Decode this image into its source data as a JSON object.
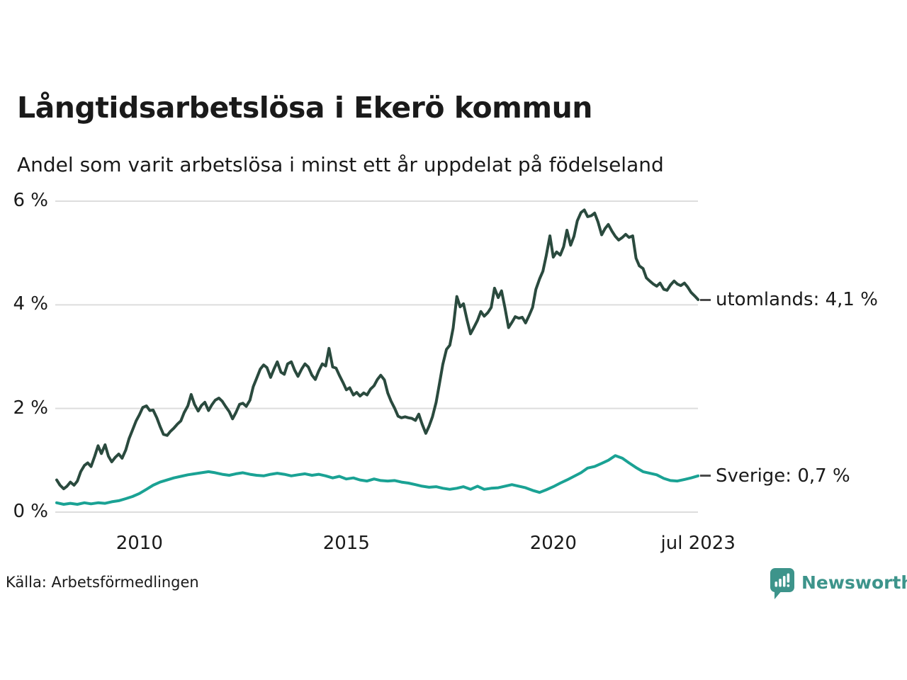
{
  "header": {
    "title": "Långtidsarbetslösa i Ekerö kommun",
    "subtitle": "Andel som varit arbetslösa i minst ett år uppdelat på födelseland"
  },
  "footer": {
    "source": "Källa: Arbetsförmedlingen",
    "brand": {
      "name": "Newsworthy",
      "color": "#3d948b",
      "icon": "newsworthy-chart-bubble-icon"
    }
  },
  "chart_data": {
    "type": "line",
    "title": "Långtidsarbetslösa i Ekerö kommun",
    "subtitle": "Andel som varit arbetslösa i minst ett år uppdelat på födelseland",
    "source": "Källa: Arbetsförmedlingen",
    "grid": true,
    "legend_position": "end-of-line labels, right side",
    "background": "#ffffff",
    "gridline_color": "#dddddd",
    "x_axis": {
      "range": [
        2008,
        2023.58
      ],
      "ticks": [
        {
          "label": "2010",
          "year": 2010
        },
        {
          "label": "2015",
          "year": 2015
        },
        {
          "label": "2020",
          "year": 2020
        },
        {
          "label": "jul 2023",
          "year": 2023.5
        }
      ]
    },
    "y_axis": {
      "unit": "%",
      "range": [
        0,
        6.2
      ],
      "ticks": [
        {
          "label": "0 %",
          "value": 0
        },
        {
          "label": "2 %",
          "value": 2
        },
        {
          "label": "4 %",
          "value": 4
        },
        {
          "label": "6 %",
          "value": 6
        }
      ]
    },
    "series": [
      {
        "name": "utomlands",
        "color": "#2a4a3e",
        "end_label": "utomlands: 4,1 %",
        "last_value": 4.1,
        "points": [
          [
            2008.0,
            0.62
          ],
          [
            2008.08,
            0.52
          ],
          [
            2008.17,
            0.45
          ],
          [
            2008.25,
            0.5
          ],
          [
            2008.33,
            0.58
          ],
          [
            2008.42,
            0.52
          ],
          [
            2008.5,
            0.6
          ],
          [
            2008.58,
            0.78
          ],
          [
            2008.67,
            0.9
          ],
          [
            2008.75,
            0.95
          ],
          [
            2008.83,
            0.88
          ],
          [
            2008.92,
            1.08
          ],
          [
            2009.0,
            1.28
          ],
          [
            2009.08,
            1.13
          ],
          [
            2009.17,
            1.3
          ],
          [
            2009.25,
            1.08
          ],
          [
            2009.33,
            0.97
          ],
          [
            2009.42,
            1.06
          ],
          [
            2009.5,
            1.12
          ],
          [
            2009.58,
            1.04
          ],
          [
            2009.67,
            1.2
          ],
          [
            2009.75,
            1.42
          ],
          [
            2009.83,
            1.58
          ],
          [
            2009.92,
            1.76
          ],
          [
            2010.0,
            1.88
          ],
          [
            2010.08,
            2.02
          ],
          [
            2010.17,
            2.05
          ],
          [
            2010.25,
            1.96
          ],
          [
            2010.33,
            1.97
          ],
          [
            2010.42,
            1.82
          ],
          [
            2010.5,
            1.65
          ],
          [
            2010.58,
            1.5
          ],
          [
            2010.67,
            1.48
          ],
          [
            2010.75,
            1.56
          ],
          [
            2010.83,
            1.62
          ],
          [
            2010.92,
            1.7
          ],
          [
            2011.0,
            1.76
          ],
          [
            2011.08,
            1.92
          ],
          [
            2011.17,
            2.05
          ],
          [
            2011.25,
            2.27
          ],
          [
            2011.33,
            2.08
          ],
          [
            2011.42,
            1.95
          ],
          [
            2011.5,
            2.06
          ],
          [
            2011.58,
            2.12
          ],
          [
            2011.67,
            1.96
          ],
          [
            2011.75,
            2.07
          ],
          [
            2011.83,
            2.16
          ],
          [
            2011.92,
            2.2
          ],
          [
            2012.0,
            2.14
          ],
          [
            2012.08,
            2.04
          ],
          [
            2012.17,
            1.94
          ],
          [
            2012.25,
            1.8
          ],
          [
            2012.33,
            1.92
          ],
          [
            2012.42,
            2.08
          ],
          [
            2012.5,
            2.1
          ],
          [
            2012.58,
            2.04
          ],
          [
            2012.67,
            2.16
          ],
          [
            2012.75,
            2.42
          ],
          [
            2012.83,
            2.58
          ],
          [
            2012.92,
            2.76
          ],
          [
            2013.0,
            2.84
          ],
          [
            2013.08,
            2.79
          ],
          [
            2013.17,
            2.6
          ],
          [
            2013.25,
            2.76
          ],
          [
            2013.33,
            2.9
          ],
          [
            2013.42,
            2.7
          ],
          [
            2013.5,
            2.66
          ],
          [
            2013.58,
            2.86
          ],
          [
            2013.67,
            2.9
          ],
          [
            2013.75,
            2.74
          ],
          [
            2013.83,
            2.62
          ],
          [
            2013.92,
            2.76
          ],
          [
            2014.0,
            2.86
          ],
          [
            2014.08,
            2.8
          ],
          [
            2014.17,
            2.64
          ],
          [
            2014.25,
            2.56
          ],
          [
            2014.33,
            2.72
          ],
          [
            2014.42,
            2.86
          ],
          [
            2014.5,
            2.82
          ],
          [
            2014.58,
            3.16
          ],
          [
            2014.67,
            2.8
          ],
          [
            2014.75,
            2.78
          ],
          [
            2014.83,
            2.64
          ],
          [
            2014.92,
            2.5
          ],
          [
            2015.0,
            2.36
          ],
          [
            2015.08,
            2.4
          ],
          [
            2015.17,
            2.26
          ],
          [
            2015.25,
            2.31
          ],
          [
            2015.33,
            2.24
          ],
          [
            2015.42,
            2.3
          ],
          [
            2015.5,
            2.26
          ],
          [
            2015.58,
            2.37
          ],
          [
            2015.67,
            2.44
          ],
          [
            2015.75,
            2.56
          ],
          [
            2015.83,
            2.64
          ],
          [
            2015.92,
            2.55
          ],
          [
            2016.0,
            2.3
          ],
          [
            2016.08,
            2.14
          ],
          [
            2016.17,
            2.0
          ],
          [
            2016.25,
            1.85
          ],
          [
            2016.33,
            1.82
          ],
          [
            2016.42,
            1.84
          ],
          [
            2016.5,
            1.82
          ],
          [
            2016.58,
            1.81
          ],
          [
            2016.67,
            1.77
          ],
          [
            2016.75,
            1.89
          ],
          [
            2016.83,
            1.7
          ],
          [
            2016.92,
            1.52
          ],
          [
            2017.0,
            1.66
          ],
          [
            2017.08,
            1.84
          ],
          [
            2017.17,
            2.12
          ],
          [
            2017.25,
            2.48
          ],
          [
            2017.33,
            2.85
          ],
          [
            2017.42,
            3.14
          ],
          [
            2017.5,
            3.22
          ],
          [
            2017.58,
            3.55
          ],
          [
            2017.67,
            4.16
          ],
          [
            2017.75,
            3.96
          ],
          [
            2017.83,
            4.02
          ],
          [
            2017.92,
            3.7
          ],
          [
            2018.0,
            3.44
          ],
          [
            2018.08,
            3.56
          ],
          [
            2018.17,
            3.7
          ],
          [
            2018.25,
            3.87
          ],
          [
            2018.33,
            3.78
          ],
          [
            2018.42,
            3.85
          ],
          [
            2018.5,
            3.95
          ],
          [
            2018.58,
            4.32
          ],
          [
            2018.67,
            4.14
          ],
          [
            2018.75,
            4.27
          ],
          [
            2018.83,
            3.95
          ],
          [
            2018.92,
            3.56
          ],
          [
            2019.0,
            3.66
          ],
          [
            2019.08,
            3.77
          ],
          [
            2019.17,
            3.74
          ],
          [
            2019.25,
            3.76
          ],
          [
            2019.33,
            3.65
          ],
          [
            2019.42,
            3.8
          ],
          [
            2019.5,
            3.95
          ],
          [
            2019.58,
            4.3
          ],
          [
            2019.67,
            4.5
          ],
          [
            2019.75,
            4.65
          ],
          [
            2019.83,
            4.95
          ],
          [
            2019.92,
            5.33
          ],
          [
            2020.0,
            4.92
          ],
          [
            2020.08,
            5.02
          ],
          [
            2020.17,
            4.96
          ],
          [
            2020.25,
            5.12
          ],
          [
            2020.33,
            5.44
          ],
          [
            2020.42,
            5.15
          ],
          [
            2020.5,
            5.32
          ],
          [
            2020.58,
            5.62
          ],
          [
            2020.67,
            5.78
          ],
          [
            2020.75,
            5.83
          ],
          [
            2020.83,
            5.7
          ],
          [
            2020.92,
            5.72
          ],
          [
            2021.0,
            5.77
          ],
          [
            2021.08,
            5.6
          ],
          [
            2021.17,
            5.35
          ],
          [
            2021.25,
            5.47
          ],
          [
            2021.33,
            5.55
          ],
          [
            2021.42,
            5.42
          ],
          [
            2021.5,
            5.32
          ],
          [
            2021.58,
            5.25
          ],
          [
            2021.67,
            5.3
          ],
          [
            2021.75,
            5.36
          ],
          [
            2021.83,
            5.3
          ],
          [
            2021.92,
            5.33
          ],
          [
            2022.0,
            4.9
          ],
          [
            2022.08,
            4.75
          ],
          [
            2022.17,
            4.7
          ],
          [
            2022.25,
            4.52
          ],
          [
            2022.33,
            4.46
          ],
          [
            2022.42,
            4.4
          ],
          [
            2022.5,
            4.36
          ],
          [
            2022.58,
            4.42
          ],
          [
            2022.67,
            4.3
          ],
          [
            2022.75,
            4.28
          ],
          [
            2022.83,
            4.38
          ],
          [
            2022.92,
            4.46
          ],
          [
            2023.0,
            4.4
          ],
          [
            2023.08,
            4.37
          ],
          [
            2023.17,
            4.42
          ],
          [
            2023.25,
            4.34
          ],
          [
            2023.33,
            4.24
          ],
          [
            2023.42,
            4.17
          ],
          [
            2023.5,
            4.1
          ]
        ]
      },
      {
        "name": "Sverige",
        "color": "#1aa294",
        "end_label": "Sverige: 0,7 %",
        "last_value": 0.7,
        "points": [
          [
            2008.0,
            0.18
          ],
          [
            2008.17,
            0.15
          ],
          [
            2008.33,
            0.17
          ],
          [
            2008.5,
            0.15
          ],
          [
            2008.67,
            0.18
          ],
          [
            2008.83,
            0.16
          ],
          [
            2009.0,
            0.18
          ],
          [
            2009.17,
            0.17
          ],
          [
            2009.33,
            0.2
          ],
          [
            2009.5,
            0.22
          ],
          [
            2009.67,
            0.26
          ],
          [
            2009.83,
            0.3
          ],
          [
            2010.0,
            0.36
          ],
          [
            2010.17,
            0.44
          ],
          [
            2010.33,
            0.52
          ],
          [
            2010.5,
            0.58
          ],
          [
            2010.67,
            0.62
          ],
          [
            2010.83,
            0.66
          ],
          [
            2011.0,
            0.69
          ],
          [
            2011.17,
            0.72
          ],
          [
            2011.33,
            0.74
          ],
          [
            2011.5,
            0.76
          ],
          [
            2011.67,
            0.78
          ],
          [
            2011.83,
            0.76
          ],
          [
            2012.0,
            0.73
          ],
          [
            2012.17,
            0.71
          ],
          [
            2012.33,
            0.74
          ],
          [
            2012.5,
            0.76
          ],
          [
            2012.67,
            0.73
          ],
          [
            2012.83,
            0.71
          ],
          [
            2013.0,
            0.7
          ],
          [
            2013.17,
            0.73
          ],
          [
            2013.33,
            0.75
          ],
          [
            2013.5,
            0.73
          ],
          [
            2013.67,
            0.7
          ],
          [
            2013.83,
            0.72
          ],
          [
            2014.0,
            0.74
          ],
          [
            2014.17,
            0.71
          ],
          [
            2014.33,
            0.73
          ],
          [
            2014.5,
            0.7
          ],
          [
            2014.67,
            0.66
          ],
          [
            2014.83,
            0.69
          ],
          [
            2015.0,
            0.64
          ],
          [
            2015.17,
            0.66
          ],
          [
            2015.33,
            0.62
          ],
          [
            2015.5,
            0.6
          ],
          [
            2015.67,
            0.64
          ],
          [
            2015.83,
            0.61
          ],
          [
            2016.0,
            0.6
          ],
          [
            2016.17,
            0.61
          ],
          [
            2016.33,
            0.58
          ],
          [
            2016.5,
            0.56
          ],
          [
            2016.67,
            0.53
          ],
          [
            2016.83,
            0.5
          ],
          [
            2017.0,
            0.48
          ],
          [
            2017.17,
            0.49
          ],
          [
            2017.33,
            0.46
          ],
          [
            2017.5,
            0.44
          ],
          [
            2017.67,
            0.46
          ],
          [
            2017.83,
            0.49
          ],
          [
            2018.0,
            0.44
          ],
          [
            2018.17,
            0.5
          ],
          [
            2018.33,
            0.44
          ],
          [
            2018.5,
            0.46
          ],
          [
            2018.67,
            0.47
          ],
          [
            2018.83,
            0.5
          ],
          [
            2019.0,
            0.53
          ],
          [
            2019.17,
            0.5
          ],
          [
            2019.33,
            0.47
          ],
          [
            2019.5,
            0.42
          ],
          [
            2019.67,
            0.38
          ],
          [
            2019.83,
            0.43
          ],
          [
            2020.0,
            0.49
          ],
          [
            2020.17,
            0.56
          ],
          [
            2020.33,
            0.62
          ],
          [
            2020.5,
            0.69
          ],
          [
            2020.67,
            0.76
          ],
          [
            2020.83,
            0.85
          ],
          [
            2021.0,
            0.88
          ],
          [
            2021.17,
            0.94
          ],
          [
            2021.33,
            1.0
          ],
          [
            2021.5,
            1.09
          ],
          [
            2021.67,
            1.04
          ],
          [
            2021.83,
            0.95
          ],
          [
            2022.0,
            0.86
          ],
          [
            2022.17,
            0.78
          ],
          [
            2022.33,
            0.75
          ],
          [
            2022.5,
            0.72
          ],
          [
            2022.67,
            0.65
          ],
          [
            2022.83,
            0.61
          ],
          [
            2023.0,
            0.6
          ],
          [
            2023.17,
            0.63
          ],
          [
            2023.33,
            0.66
          ],
          [
            2023.5,
            0.7
          ]
        ]
      }
    ]
  }
}
